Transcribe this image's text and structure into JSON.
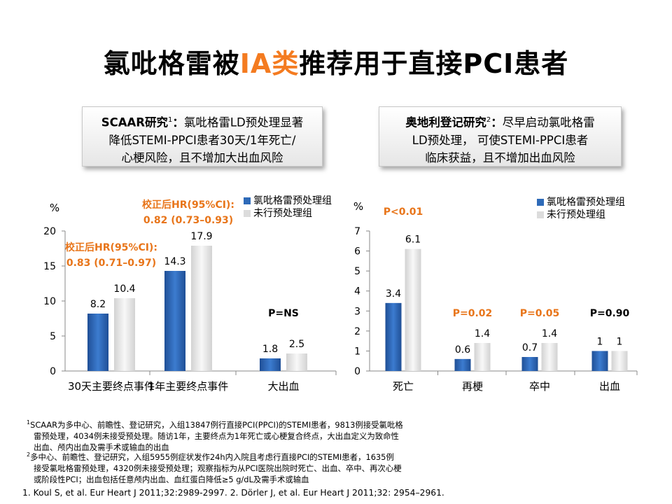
{
  "title": {
    "before": "氯吡格雷被",
    "highlight": "IA类",
    "after": "推荐用于直接PCI患者",
    "highlight_color": "#f47b20"
  },
  "box_left": {
    "bold": "SCAAR研究",
    "sup": "1",
    "bold_tail": "：",
    "text1": "氯吡格雷LD预处理显著",
    "line2": "降低STEMI-PPCI患者30天/1年死亡/",
    "line3": "心梗风险，且不增加大出血风险"
  },
  "box_right": {
    "bold": "奥地利登记研究",
    "sup": "2",
    "bold_tail": "：",
    "text1": "尽早启动氯吡格雷",
    "line2": "LD预处理， 可使STEMI-PPCI患者",
    "line3": "临床获益，且不增加出血风险"
  },
  "legend": {
    "series1": "氯吡格雷预处理组",
    "series2": "未行预处理组"
  },
  "colors": {
    "series1": "#2e6ab8",
    "series2": "#e2e2e2",
    "accent": "#e8751a"
  },
  "chart_data": [
    {
      "type": "bar",
      "ylabel": "%",
      "ylim": [
        0,
        20
      ],
      "yticks": [
        0,
        5,
        10,
        15,
        20
      ],
      "categories": [
        "30天主要终点事件",
        "1年主要终点事件",
        "大出血"
      ],
      "series": [
        {
          "name": "氯吡格雷预处理组",
          "values": [
            8.2,
            14.3,
            1.8
          ],
          "labels": [
            "8.2",
            "14.3",
            "1.8"
          ]
        },
        {
          "name": "未行预处理组",
          "values": [
            10.4,
            17.9,
            2.5
          ],
          "labels": [
            "10.4",
            "17.9",
            "2.5"
          ]
        }
      ],
      "annotations": [
        {
          "line1": "校正后HR(95%CI):",
          "line2": "0.83 (0.71–0.97)",
          "color": "accent"
        },
        {
          "line1": "校正后HR(95%CI):",
          "line2": "0.82 (0.73–0.93)",
          "color": "accent"
        },
        {
          "line1": "P=NS",
          "color": "black"
        }
      ]
    },
    {
      "type": "bar",
      "ylabel": "%",
      "ylim": [
        0,
        7
      ],
      "yticks": [
        0,
        1,
        2,
        3,
        4,
        5,
        6,
        7
      ],
      "categories": [
        "死亡",
        "再梗",
        "卒中",
        "出血"
      ],
      "series": [
        {
          "name": "氯吡格雷预处理组",
          "values": [
            3.4,
            0.6,
            0.7,
            1
          ],
          "labels": [
            "3.4",
            "0.6",
            "0.7",
            "1"
          ]
        },
        {
          "name": "未行预处理组",
          "values": [
            6.1,
            1.4,
            1.4,
            1
          ],
          "labels": [
            "6.1",
            "1.4",
            "1.4",
            "1"
          ]
        }
      ],
      "annotations": [
        {
          "line1": "P<0.01",
          "color": "accent"
        },
        {
          "line1": "P=0.02",
          "color": "accent"
        },
        {
          "line1": "P=0.05",
          "color": "accent"
        },
        {
          "line1": "P=0.90",
          "color": "black"
        }
      ]
    }
  ],
  "notes": {
    "n1": [
      "SCAAR为多中心、前瞻性、登记研究，入组13847例行直接PCI(PPCI)的STEMI患者，9813例接受氯吡格",
      "雷预处理，4034例未接受预处理。随访1年，主要终点为1年死亡或心梗复合终点，大出血定义为致命性",
      "出血、颅内出血及需手术或输血的出血"
    ],
    "n2": [
      "多中心、前瞻性、登记研究，入组5955例症状发作24h内入院且考虑行直接PCI的STEMI患者，1635例",
      "接受氯吡格雷预处理，4320例未接受预处理；观察指标为从PCI医院出院时死亡、出血、卒中、再次心梗",
      "或阶段性PCI；出血包括任意颅内出血、血红蛋白降低≥5 g/dL及需手术或输血"
    ],
    "ref": "1. Koul S, et al. Eur Heart J 2011;32:2989-2997.  2. Dörler J, et al. Eur Heart J 2011;32: 2954–2961."
  }
}
